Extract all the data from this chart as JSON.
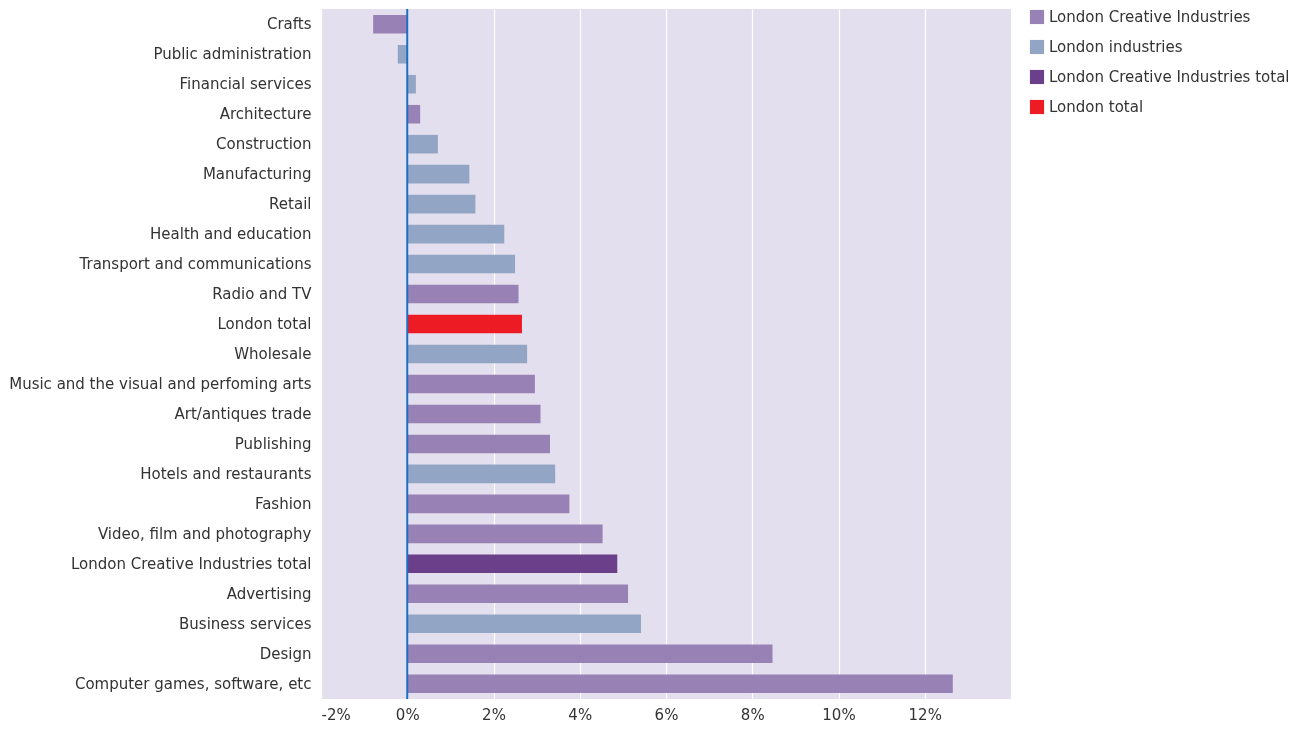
{
  "chart_data": {
    "type": "bar",
    "orientation": "horizontal",
    "categories": [
      "Crafts",
      "Public administration",
      "Financial services",
      "Architecture",
      "Construction",
      "Manufacturing",
      "Retail",
      "Health and education",
      "Transport and communications",
      "Radio and TV",
      "London total",
      "Wholesale",
      "Music and the visual and perfoming arts",
      "Art/antiques trade",
      "Publishing",
      "Hotels and restaurants",
      "Fashion",
      "Video, film and photography",
      "London Creative Industries total",
      "Advertising",
      "Business services",
      "Design",
      "Computer games, software, etc"
    ],
    "series": [
      {
        "name": "London Creative Industries",
        "color": "#9781b5",
        "values": [
          -0.79,
          null,
          null,
          0.3,
          null,
          null,
          null,
          null,
          null,
          2.58,
          null,
          null,
          2.96,
          3.09,
          3.31,
          null,
          3.76,
          4.53,
          null,
          5.12,
          null,
          8.47,
          12.65
        ]
      },
      {
        "name": "London industries",
        "color": "#92a5c4",
        "values": [
          null,
          -0.22,
          0.2,
          null,
          0.71,
          1.44,
          1.58,
          2.25,
          2.5,
          null,
          null,
          2.78,
          null,
          null,
          null,
          3.43,
          null,
          null,
          null,
          null,
          5.42,
          null,
          null
        ]
      },
      {
        "name": "London Creative Industries total",
        "color": "#6b3f8a",
        "values": [
          null,
          null,
          null,
          null,
          null,
          null,
          null,
          null,
          null,
          null,
          null,
          null,
          null,
          null,
          null,
          null,
          null,
          null,
          4.87,
          null,
          null,
          null,
          null
        ]
      },
      {
        "name": "London total",
        "color": "#ed1c24",
        "values": [
          null,
          null,
          null,
          null,
          null,
          null,
          null,
          null,
          null,
          null,
          2.66,
          null,
          null,
          null,
          null,
          null,
          null,
          null,
          null,
          null,
          null,
          null,
          null
        ]
      }
    ],
    "xlim": [
      -2,
      14
    ],
    "xticks": [
      {
        "value": -2,
        "label": "-2%"
      },
      {
        "value": 0,
        "label": "0%"
      },
      {
        "value": 2,
        "label": "2%"
      },
      {
        "value": 4,
        "label": "4%"
      },
      {
        "value": 6,
        "label": "6%"
      },
      {
        "value": 8,
        "label": "8%"
      },
      {
        "value": 10,
        "label": "10%"
      },
      {
        "value": 12,
        "label": "12%"
      }
    ],
    "ref_lines": [
      {
        "axis": "x",
        "value": 0,
        "color": "#1a6fc4"
      }
    ],
    "grid": "x",
    "legend": "top right"
  }
}
